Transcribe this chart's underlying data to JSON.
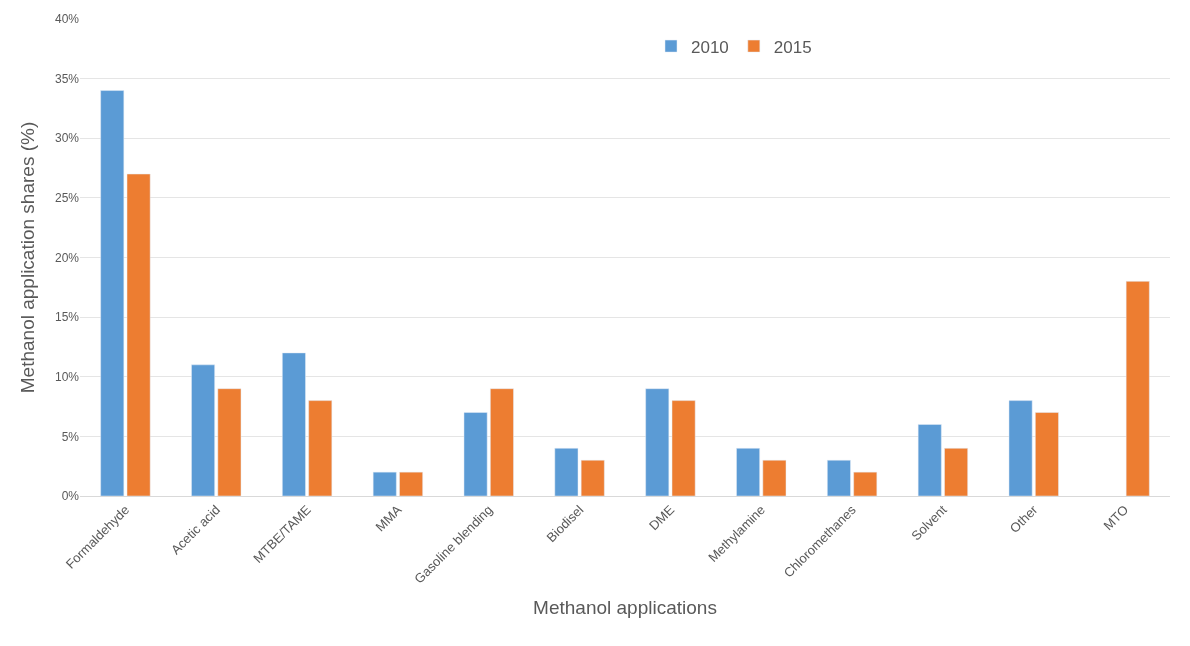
{
  "chart_data": {
    "type": "bar",
    "xlabel": "Methanol applications",
    "ylabel": "Methanol application shares (%)",
    "categories": [
      "Formaldehyde",
      "Acetic acid",
      "MTBE/TAME",
      "MMA",
      "Gasoline blending",
      "Biodisel",
      "DME",
      "Methylamine",
      "Chloromethanes",
      "Solvent",
      "Other",
      "MTO"
    ],
    "series": [
      {
        "name": "2010",
        "color": "#5b9bd5",
        "values": [
          34,
          11,
          12,
          2,
          7,
          4,
          9,
          4,
          3,
          6,
          8,
          null
        ]
      },
      {
        "name": "2015",
        "color": "#ed7d31",
        "values": [
          27,
          9,
          8,
          2,
          9,
          3,
          8,
          3,
          2,
          4,
          7,
          18
        ]
      }
    ],
    "ylim": [
      0,
      40
    ],
    "yticks": [
      {
        "value": 0,
        "label": "0%"
      },
      {
        "value": 5,
        "label": "5%"
      },
      {
        "value": 10,
        "label": "10%"
      },
      {
        "value": 15,
        "label": "15%"
      },
      {
        "value": 20,
        "label": "20%"
      },
      {
        "value": 25,
        "label": "25%"
      },
      {
        "value": 30,
        "label": "30%"
      },
      {
        "value": 35,
        "label": "35%"
      },
      {
        "value": 40,
        "label": "40%"
      }
    ],
    "grid": "y",
    "legend": "top"
  }
}
